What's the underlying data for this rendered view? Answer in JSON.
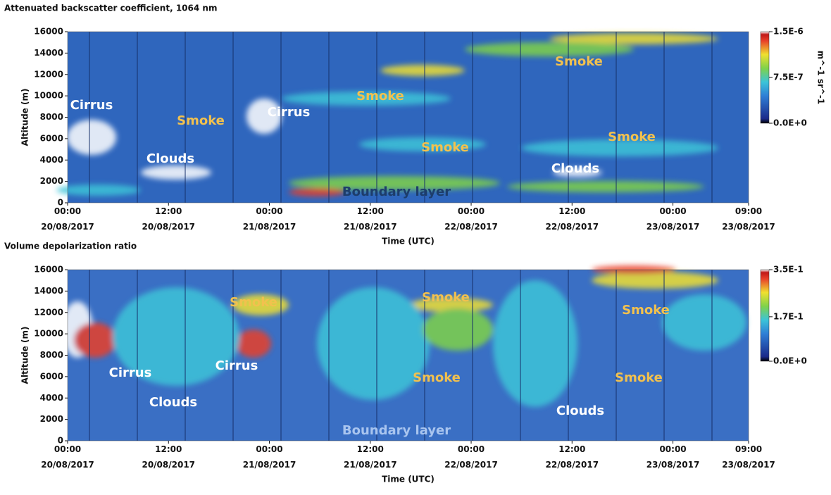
{
  "chart_data": [
    {
      "type": "heatmap",
      "title": "Attenuated backscatter coefficient, 1064 nm",
      "ylabel": "Altitude (m)",
      "xlabel": "Time (UTC)",
      "ylim": [
        0,
        16000
      ],
      "yticks": [
        0,
        2000,
        4000,
        6000,
        8000,
        10000,
        12000,
        14000,
        16000
      ],
      "xlim": [
        "2017-08-20T00:00",
        "2017-08-23T09:00"
      ],
      "xticks": [
        {
          "value": "2017-08-20T00:00",
          "label": "00:00 20/08/2017"
        },
        {
          "value": "2017-08-20T12:00",
          "label": "12:00 20/08/2017"
        },
        {
          "value": "2017-08-21T00:00",
          "label": "00:00 21/08/2017"
        },
        {
          "value": "2017-08-21T12:00",
          "label": "12:00 21/08/2017"
        },
        {
          "value": "2017-08-22T00:00",
          "label": "00:00 22/08/2017"
        },
        {
          "value": "2017-08-22T12:00",
          "label": "12:00 22/08/2017"
        },
        {
          "value": "2017-08-23T00:00",
          "label": "00:00 23/08/2017"
        },
        {
          "value": "2017-08-23T09:00",
          "label": "09:00 23/08/2017"
        }
      ],
      "colorbar": {
        "label": "m^-1 sr^-1",
        "lim": [
          0,
          1.5e-06
        ],
        "ticks": [
          {
            "value": 1.5e-06,
            "label": "1.5E-6"
          },
          {
            "value": 7.5e-07,
            "label": "7.5E-7"
          },
          {
            "value": 0,
            "label": "0.0E+0"
          }
        ]
      },
      "annotations": [
        {
          "text": "Cirrus",
          "color": "#ffffff"
        },
        {
          "text": "Smoke",
          "color": "#f2c14e"
        },
        {
          "text": "Cirrus",
          "color": "#ffffff"
        },
        {
          "text": "Smoke",
          "color": "#f2c14e"
        },
        {
          "text": "Clouds",
          "color": "#ffffff"
        },
        {
          "text": "Smoke",
          "color": "#f2c14e"
        },
        {
          "text": "Smoke",
          "color": "#f2c14e"
        },
        {
          "text": "Smoke",
          "color": "#f2c14e"
        },
        {
          "text": "Clouds",
          "color": "#ffffff"
        },
        {
          "text": "Boundary layer",
          "color": "#1d3d6b"
        }
      ]
    },
    {
      "type": "heatmap",
      "title": "Volume depolarization ratio",
      "ylabel": "Altitude (m)",
      "xlabel": "Time (UTC)",
      "ylim": [
        0,
        16000
      ],
      "yticks": [
        0,
        2000,
        4000,
        6000,
        8000,
        10000,
        12000,
        14000,
        16000
      ],
      "xlim": [
        "2017-08-20T00:00",
        "2017-08-23T09:00"
      ],
      "xticks": [
        {
          "value": "2017-08-20T00:00",
          "label": "00:00 20/08/2017"
        },
        {
          "value": "2017-08-20T12:00",
          "label": "12:00 20/08/2017"
        },
        {
          "value": "2017-08-21T00:00",
          "label": "00:00 21/08/2017"
        },
        {
          "value": "2017-08-21T12:00",
          "label": "12:00 21/08/2017"
        },
        {
          "value": "2017-08-22T00:00",
          "label": "00:00 22/08/2017"
        },
        {
          "value": "2017-08-22T12:00",
          "label": "12:00 22/08/2017"
        },
        {
          "value": "2017-08-23T00:00",
          "label": "00:00 23/08/2017"
        },
        {
          "value": "2017-08-23T09:00",
          "label": "09:00 23/08/2017"
        }
      ],
      "colorbar": {
        "lim": [
          0,
          0.35
        ],
        "ticks": [
          {
            "value": 0.35,
            "label": "3.5E-1"
          },
          {
            "value": 0.17,
            "label": "1.7E-1"
          },
          {
            "value": 0,
            "label": "0.0E+0"
          }
        ]
      },
      "annotations": [
        {
          "text": "Smoke",
          "color": "#f2c14e"
        },
        {
          "text": "Cirrus",
          "color": "#ffffff"
        },
        {
          "text": "Cirrus",
          "color": "#ffffff"
        },
        {
          "text": "Clouds",
          "color": "#ffffff"
        },
        {
          "text": "Smoke",
          "color": "#f2c14e"
        },
        {
          "text": "Smoke",
          "color": "#f2c14e"
        },
        {
          "text": "Smoke",
          "color": "#f2c14e"
        },
        {
          "text": "Smoke",
          "color": "#f2c14e"
        },
        {
          "text": "Clouds",
          "color": "#ffffff"
        },
        {
          "text": "Boundary layer",
          "color": "#a9c5ef"
        }
      ]
    }
  ]
}
